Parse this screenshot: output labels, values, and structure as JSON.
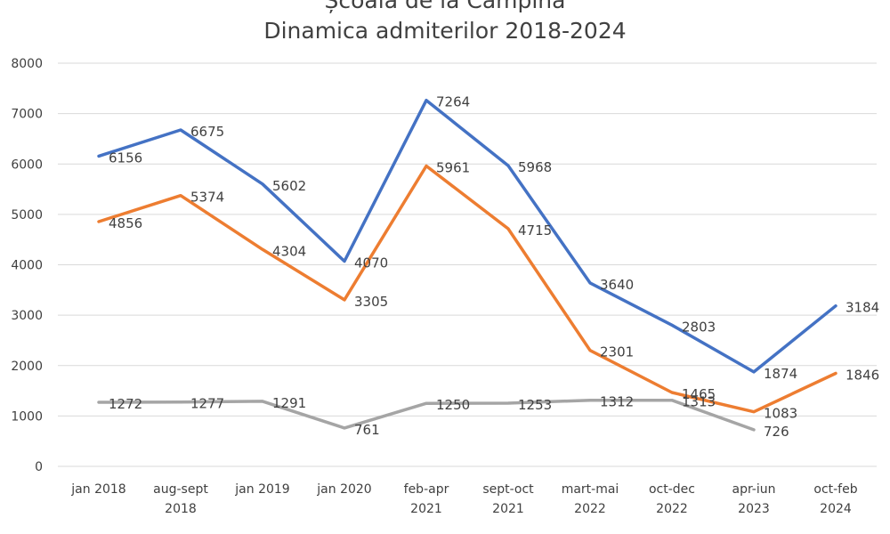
{
  "chart_data": {
    "type": "line",
    "title": "Școala de la Câmpina",
    "subtitle": "Dinamica admiterilor 2018-2024",
    "categories": [
      [
        "jan 2018",
        ""
      ],
      [
        "aug-sept",
        "2018"
      ],
      [
        "jan 2019",
        ""
      ],
      [
        "jan 2020",
        ""
      ],
      [
        "feb-apr",
        "2021"
      ],
      [
        "sept-oct",
        "2021"
      ],
      [
        "mart-mai",
        "2022"
      ],
      [
        "oct-dec",
        "2022"
      ],
      [
        "apr-iun",
        "2023"
      ],
      [
        "oct-feb",
        "2024"
      ]
    ],
    "ylim": [
      0,
      8000
    ],
    "yticks": [
      0,
      1000,
      2000,
      3000,
      4000,
      5000,
      6000,
      7000,
      8000
    ],
    "grid": true,
    "series": [
      {
        "color": "#4472C4",
        "values": [
          6156,
          6675,
          5602,
          4070,
          7264,
          5968,
          3640,
          2803,
          1874,
          3184
        ]
      },
      {
        "color": "#ED7D31",
        "values": [
          4856,
          5374,
          4304,
          3305,
          5961,
          4715,
          2301,
          1465,
          1083,
          1846
        ]
      },
      {
        "color": "#A5A5A5",
        "values": [
          1272,
          1277,
          1291,
          761,
          1250,
          1253,
          1312,
          1313,
          726,
          null
        ]
      }
    ]
  }
}
